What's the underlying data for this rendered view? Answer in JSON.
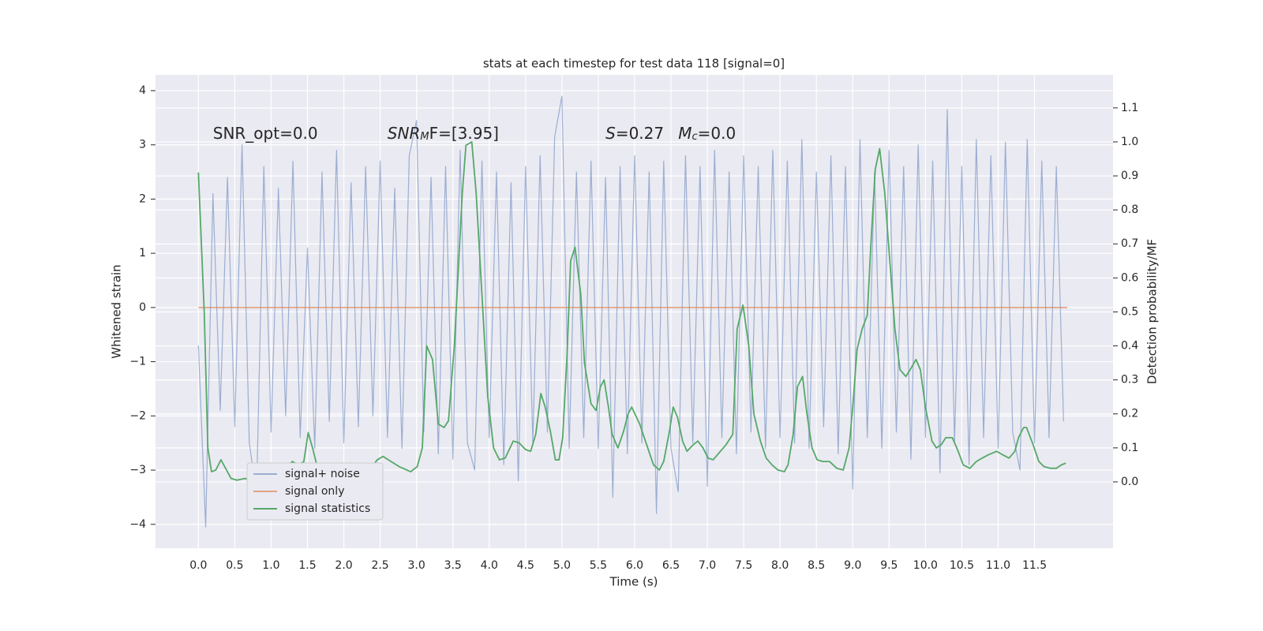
{
  "chart_data": {
    "type": "line",
    "title": "stats at each timestep for test data 118 [signal=0]",
    "xlabel": "Time (s)",
    "ylabel": "Whitened strain",
    "y2label": "Detection probability/MF",
    "annotations": [
      {
        "base": "SNR_opt=0.0",
        "x": 0.2,
        "y": 3.2,
        "italic": false
      },
      {
        "base": "SNR",
        "sub": "M",
        "rest": "F=[3.95]",
        "x": 2.6,
        "y": 3.2,
        "italic": true
      },
      {
        "base": "S",
        "rest": "=0.27",
        "x": 5.6,
        "y": 3.2,
        "italic": true
      },
      {
        "base": "M",
        "sub": "c",
        "rest": "=0.0",
        "x": 6.6,
        "y": 3.2,
        "italic": true
      }
    ],
    "xlim": [
      -0.59,
      12.58
    ],
    "ylim": [
      -4.44,
      4.29
    ],
    "y2lim": [
      -0.195,
      1.197
    ],
    "xticks": [
      {
        "value": 0,
        "label": "0.0"
      },
      0.5,
      {
        "value": 1,
        "label": "1.0"
      },
      1.5,
      {
        "value": 2,
        "label": "2.0"
      },
      2.5,
      {
        "value": 3,
        "label": "3.0"
      },
      3.5,
      {
        "value": 4,
        "label": "4.0"
      },
      4.5,
      {
        "value": 5,
        "label": "5.0"
      },
      5.5,
      {
        "value": 6,
        "label": "6.0"
      },
      6.5,
      {
        "value": 7,
        "label": "7.0"
      },
      7.5,
      {
        "value": 8,
        "label": "8.0"
      },
      8.5,
      {
        "value": 9,
        "label": "9.0"
      },
      9.5,
      {
        "value": 10,
        "label": "10.0"
      },
      10.5,
      {
        "value": 11,
        "label": "11.0"
      },
      11.5
    ],
    "yticks": [
      {
        "value": -4,
        "label": "−4"
      },
      {
        "value": -3,
        "label": "−3"
      },
      {
        "value": -2,
        "label": "−2"
      },
      {
        "value": -1,
        "label": "−1"
      },
      0,
      1,
      2,
      3,
      4
    ],
    "y2ticks": [
      {
        "value": 0,
        "label": "0.0"
      },
      0.1,
      0.2,
      0.3,
      0.4,
      0.5,
      0.6,
      0.7,
      0.8,
      0.9,
      {
        "value": 1,
        "label": "1.0"
      },
      1.1
    ],
    "grid": true,
    "legend": "lower left",
    "series": [
      {
        "name": "signal+ noise",
        "color": "#4c72b0",
        "opacity": 0.5,
        "x": [
          0,
          0.1,
          0.2,
          0.3,
          0.4,
          0.5,
          0.6,
          0.7,
          0.8,
          0.9,
          1,
          1.1,
          1.2,
          1.3,
          1.4,
          1.5,
          1.6,
          1.7,
          1.8,
          1.9,
          2,
          2.1,
          2.2,
          2.3,
          2.4,
          2.5,
          2.6,
          2.7,
          2.8,
          2.9,
          3,
          3.1,
          3.2,
          3.3,
          3.4,
          3.5,
          3.6,
          3.7,
          3.8,
          3.9,
          4,
          4.1,
          4.2,
          4.3,
          4.4,
          4.5,
          4.6,
          4.7,
          4.8,
          4.9,
          5,
          5.1,
          5.2,
          5.3,
          5.4,
          5.5,
          5.6,
          5.7,
          5.8,
          5.9,
          6,
          6.1,
          6.2,
          6.3,
          6.4,
          6.5,
          6.6,
          6.7,
          6.8,
          6.9,
          7,
          7.1,
          7.2,
          7.3,
          7.4,
          7.5,
          7.6,
          7.7,
          7.8,
          7.9,
          8,
          8.1,
          8.2,
          8.3,
          8.4,
          8.5,
          8.6,
          8.7,
          8.8,
          8.9,
          9,
          9.1,
          9.2,
          9.3,
          9.4,
          9.5,
          9.6,
          9.7,
          9.8,
          9.9,
          10,
          10.1,
          10.2,
          10.3,
          10.4,
          10.5,
          10.6,
          10.7,
          10.8,
          10.9,
          11,
          11.1,
          11.2,
          11.3,
          11.4,
          11.5,
          11.6,
          11.7,
          11.8,
          11.9
        ],
        "values": [
          -0.7,
          -4.05,
          2.1,
          -1.9,
          2.4,
          -2.2,
          3.0,
          -2.5,
          -3.45,
          2.6,
          -2.3,
          2.2,
          -2.0,
          2.7,
          -2.4,
          1.1,
          -2.6,
          2.5,
          -2.1,
          2.9,
          -2.5,
          2.3,
          -2.2,
          2.6,
          -2.0,
          2.7,
          -2.4,
          2.2,
          -2.6,
          2.8,
          3.45,
          -2.3,
          2.4,
          -2.7,
          2.6,
          -2.8,
          2.9,
          -2.5,
          -3.0,
          2.7,
          -2.4,
          2.5,
          -2.9,
          2.3,
          -3.2,
          2.6,
          -2.5,
          2.8,
          -2.3,
          3.15,
          3.9,
          -2.6,
          2.5,
          -2.4,
          2.7,
          -2.6,
          2.4,
          -3.5,
          2.6,
          -2.7,
          2.8,
          -2.5,
          2.5,
          -3.8,
          2.7,
          -2.6,
          -3.4,
          2.8,
          -2.5,
          2.6,
          -3.3,
          2.9,
          -2.4,
          2.5,
          -2.7,
          2.8,
          -2.3,
          2.6,
          -2.6,
          2.9,
          -2.4,
          2.7,
          -2.5,
          3.1,
          -2.6,
          2.5,
          -2.2,
          2.8,
          -2.7,
          2.6,
          -3.35,
          3.1,
          -2.4,
          2.5,
          -2.6,
          2.9,
          -2.3,
          2.6,
          -2.8,
          3.0,
          -2.4,
          2.7,
          -3.05,
          3.65,
          -2.5,
          2.6,
          -2.9,
          3.1,
          -2.4,
          2.8,
          -2.6,
          3.05,
          -2.3,
          -3.0,
          3.1,
          -2.5,
          2.7,
          -2.4,
          2.6,
          -2.1
        ]
      },
      {
        "name": "signal only",
        "color": "#dd8452",
        "opacity": 0.7,
        "x": [
          0,
          11.95
        ],
        "values": [
          0,
          0
        ]
      },
      {
        "name": "signal statistics",
        "color": "#55a868",
        "opacity": 1,
        "axis": "y2",
        "x": [
          0,
          0.08,
          0.13,
          0.18,
          0.24,
          0.31,
          0.45,
          0.53,
          0.64,
          0.8,
          1.02,
          1.18,
          1.29,
          1.38,
          1.45,
          1.51,
          1.57,
          1.64,
          1.73,
          1.89,
          2.05,
          2.16,
          2.27,
          2.36,
          2.46,
          2.54,
          2.65,
          2.76,
          2.92,
          3.01,
          3.08,
          3.14,
          3.22,
          3.3,
          3.38,
          3.44,
          3.52,
          3.63,
          3.68,
          3.76,
          3.82,
          3.9,
          3.98,
          4.06,
          4.14,
          4.22,
          4.33,
          4.41,
          4.5,
          4.57,
          4.64,
          4.71,
          4.77,
          4.84,
          4.91,
          4.96,
          5.01,
          5.07,
          5.12,
          5.18,
          5.26,
          5.31,
          5.4,
          5.47,
          5.53,
          5.58,
          5.64,
          5.69,
          5.77,
          5.85,
          5.91,
          5.96,
          6.07,
          6.18,
          6.26,
          6.34,
          6.4,
          6.48,
          6.53,
          6.59,
          6.66,
          6.72,
          6.81,
          6.87,
          6.94,
          7.01,
          7.08,
          7.16,
          7.26,
          7.35,
          7.41,
          7.49,
          7.57,
          7.64,
          7.73,
          7.81,
          7.89,
          7.97,
          8.06,
          8.11,
          8.18,
          8.24,
          8.31,
          8.37,
          8.44,
          8.51,
          8.59,
          8.68,
          8.78,
          8.87,
          8.95,
          9.0,
          9.06,
          9.13,
          9.2,
          9.25,
          9.31,
          9.37,
          9.44,
          9.51,
          9.58,
          9.65,
          9.73,
          9.79,
          9.87,
          9.93,
          10.0,
          10.09,
          10.15,
          10.22,
          10.28,
          10.37,
          10.45,
          10.52,
          10.61,
          10.7,
          10.78,
          10.87,
          10.98,
          11.06,
          11.15,
          11.23,
          11.28,
          11.35,
          11.39,
          11.48,
          11.56,
          11.63,
          11.72,
          11.8,
          11.87,
          11.93
        ],
        "values": [
          0.91,
          0.5,
          0.1,
          0.03,
          0.035,
          0.065,
          0.01,
          0.005,
          0.01,
          0.0,
          0.003,
          0.03,
          0.06,
          0.05,
          0.06,
          0.145,
          0.1,
          0.04,
          0.025,
          0.035,
          0.04,
          0.03,
          0.025,
          0.035,
          0.065,
          0.075,
          0.06,
          0.045,
          0.03,
          0.045,
          0.1,
          0.4,
          0.36,
          0.17,
          0.16,
          0.18,
          0.4,
          0.85,
          0.99,
          1.0,
          0.85,
          0.55,
          0.25,
          0.1,
          0.065,
          0.07,
          0.12,
          0.115,
          0.095,
          0.09,
          0.14,
          0.26,
          0.22,
          0.15,
          0.065,
          0.065,
          0.13,
          0.37,
          0.65,
          0.69,
          0.55,
          0.35,
          0.23,
          0.21,
          0.28,
          0.3,
          0.22,
          0.14,
          0.1,
          0.15,
          0.2,
          0.22,
          0.17,
          0.1,
          0.05,
          0.035,
          0.06,
          0.15,
          0.22,
          0.19,
          0.12,
          0.09,
          0.11,
          0.12,
          0.1,
          0.07,
          0.065,
          0.085,
          0.11,
          0.14,
          0.45,
          0.52,
          0.4,
          0.2,
          0.12,
          0.07,
          0.05,
          0.035,
          0.03,
          0.05,
          0.14,
          0.28,
          0.31,
          0.2,
          0.1,
          0.065,
          0.06,
          0.06,
          0.04,
          0.035,
          0.1,
          0.22,
          0.39,
          0.45,
          0.49,
          0.7,
          0.92,
          0.98,
          0.85,
          0.65,
          0.45,
          0.33,
          0.31,
          0.33,
          0.36,
          0.33,
          0.22,
          0.12,
          0.1,
          0.11,
          0.13,
          0.13,
          0.09,
          0.05,
          0.04,
          0.06,
          0.07,
          0.08,
          0.09,
          0.08,
          0.07,
          0.09,
          0.13,
          0.16,
          0.16,
          0.11,
          0.06,
          0.045,
          0.04,
          0.04,
          0.05,
          0.055
        ]
      }
    ]
  }
}
